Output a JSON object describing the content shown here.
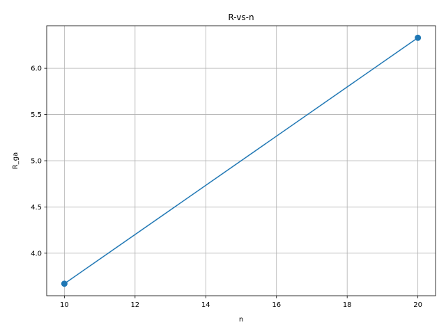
{
  "chart_data": {
    "type": "line",
    "title": "R-vs-n",
    "xlabel": "n",
    "ylabel": "R_ga",
    "x": [
      10,
      20
    ],
    "series": [
      {
        "values": [
          3.67,
          6.33
        ],
        "color": "#1f77b4",
        "marker": "circle"
      }
    ],
    "xlim": [
      9.5,
      20.5
    ],
    "ylim": [
      3.54,
      6.46
    ],
    "xticks": [
      10,
      12,
      14,
      16,
      18,
      20
    ],
    "xtick_labels": [
      "10",
      "12",
      "14",
      "16",
      "18",
      "20"
    ],
    "yticks": [
      4.0,
      4.5,
      5.0,
      5.5,
      6.0
    ],
    "ytick_labels": [
      "4.0",
      "4.5",
      "5.0",
      "5.5",
      "6.0"
    ],
    "grid": true
  }
}
